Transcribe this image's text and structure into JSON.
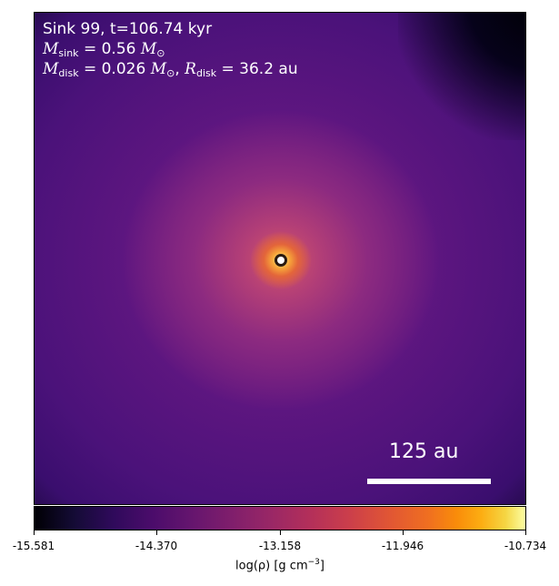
{
  "annotation": {
    "title": "Sink 99, t=106.74 kyr",
    "m_sink_symbol": "M",
    "m_sink_sub": "sink",
    "m_sink_value": "= 0.56",
    "m_sink_unit": "M",
    "m_sink_unit_sub": "⊙",
    "m_disk_symbol": "M",
    "m_disk_sub": "disk",
    "m_disk_value": "= 0.026",
    "m_disk_unit": "M",
    "m_disk_unit_sub": "⊙",
    "separator": ", ",
    "r_disk_symbol": "R",
    "r_disk_sub": "disk",
    "r_disk_value": "= 36.2 au"
  },
  "scale_bar": {
    "label": "125 au"
  },
  "colorbar": {
    "tick_labels": [
      "-15.581",
      "-14.370",
      "-13.158",
      "-11.946",
      "-10.734"
    ],
    "label_prefix": "log(ρ) [g cm",
    "label_exp": "−3",
    "label_suffix": "]",
    "colormap": "inferno"
  },
  "colors": {
    "text_overlay": "#ffffff",
    "sink_marker": "#ffffff"
  }
}
